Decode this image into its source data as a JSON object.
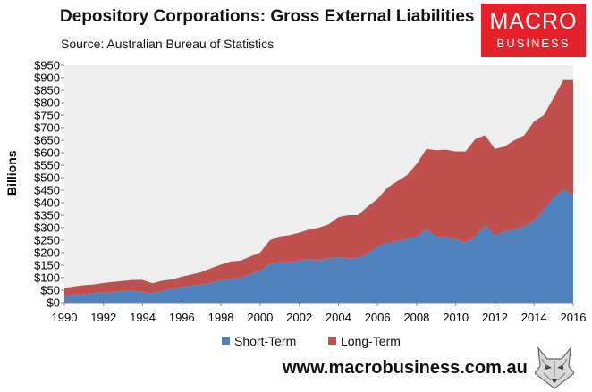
{
  "header": {
    "title": "Depository Corporations: Gross External Liabilities",
    "subtitle": "Source: Australian Bureau of Statistics"
  },
  "logo": {
    "line1": "MACRO",
    "line2": "BUSINESS",
    "color": "#e3222b",
    "icon": "wolf-icon"
  },
  "footer": {
    "url": "www.macrobusiness.com.au"
  },
  "chart_data": {
    "type": "area",
    "stacked": true,
    "title": "Depository Corporations: Gross External Liabilities",
    "ylabel": "Billions",
    "xlabel": "",
    "ylim": [
      0,
      950
    ],
    "xlim": [
      1990,
      2016
    ],
    "y_ticks": [
      "$0",
      "$50",
      "$100",
      "$150",
      "$200",
      "$250",
      "$300",
      "$350",
      "$400",
      "$450",
      "$500",
      "$550",
      "$600",
      "$650",
      "$700",
      "$750",
      "$800",
      "$850",
      "$900",
      "$950"
    ],
    "x_ticks": [
      "1990",
      "1992",
      "1994",
      "1996",
      "1998",
      "2000",
      "2002",
      "2004",
      "2006",
      "2008",
      "2010",
      "2012",
      "2014",
      "2016"
    ],
    "legend_position": "bottom",
    "x": [
      1990,
      1990.5,
      1991,
      1991.5,
      1992,
      1992.5,
      1993,
      1993.5,
      1994,
      1994.5,
      1995,
      1995.5,
      1996,
      1996.5,
      1997,
      1997.5,
      1998,
      1998.5,
      1999,
      1999.5,
      2000,
      2000.5,
      2001,
      2001.5,
      2002,
      2002.5,
      2003,
      2003.5,
      2004,
      2004.5,
      2005,
      2005.5,
      2006,
      2006.5,
      2007,
      2007.5,
      2008,
      2008.5,
      2009,
      2009.5,
      2010,
      2010.5,
      2011,
      2011.5,
      2012,
      2012.5,
      2013,
      2013.5,
      2014,
      2014.5,
      2015,
      2015.5,
      2016
    ],
    "series": [
      {
        "name": "Short-Term",
        "color": "#4f81bd",
        "values": [
          28,
          33,
          35,
          38,
          42,
          43,
          47,
          48,
          44,
          38,
          48,
          55,
          62,
          68,
          72,
          80,
          90,
          95,
          100,
          115,
          128,
          155,
          165,
          162,
          168,
          175,
          170,
          178,
          182,
          178,
          180,
          195,
          225,
          240,
          245,
          255,
          265,
          295,
          265,
          262,
          255,
          240,
          265,
          310,
          270,
          285,
          295,
          305,
          330,
          370,
          420,
          455,
          430
        ]
      },
      {
        "name": "Long-Term",
        "color": "#c0504d",
        "values": [
          30,
          32,
          35,
          35,
          37,
          40,
          40,
          43,
          47,
          40,
          40,
          38,
          42,
          45,
          50,
          58,
          62,
          70,
          68,
          70,
          72,
          95,
          100,
          108,
          112,
          118,
          130,
          135,
          160,
          172,
          170,
          190,
          190,
          220,
          240,
          255,
          290,
          320,
          345,
          350,
          350,
          365,
          390,
          360,
          345,
          340,
          355,
          365,
          395,
          380,
          400,
          435,
          460
        ]
      }
    ]
  }
}
